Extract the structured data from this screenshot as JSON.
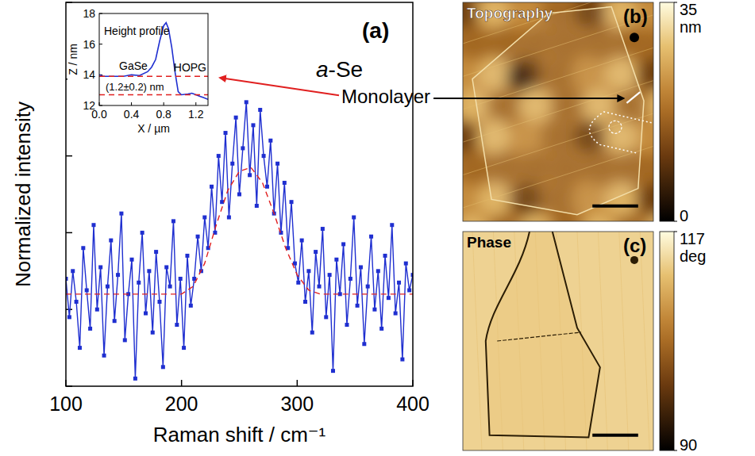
{
  "chart_data": [
    {
      "type": "line",
      "panel_label": "(a)",
      "x_label": "Raman shift / cm⁻¹",
      "y_label": "Normalized intensity",
      "xlim": [
        100,
        400
      ],
      "xticks": [
        100,
        200,
        300,
        400
      ],
      "ylim": [
        0,
        1
      ],
      "yticks": [
        0,
        0.2,
        0.4,
        0.6,
        0.8,
        1
      ],
      "tick_labels": "x",
      "grid": false,
      "annotations": [
        "a-Se",
        "Monolayer"
      ],
      "series": [
        {
          "color": "#1f2fd0",
          "marker": "square",
          "line_style": "solid",
          "x": [
            100,
            103,
            106,
            109,
            112,
            115,
            118,
            121,
            124,
            127,
            130,
            133,
            136,
            139,
            142,
            145,
            148,
            151,
            154,
            157,
            160,
            163,
            166,
            169,
            172,
            175,
            178,
            181,
            184,
            187,
            190,
            193,
            196,
            199,
            202,
            205,
            208,
            211,
            214,
            217,
            220,
            223,
            226,
            229,
            232,
            235,
            238,
            241,
            244,
            247,
            250,
            253,
            256,
            259,
            262,
            265,
            268,
            271,
            274,
            277,
            280,
            283,
            286,
            289,
            292,
            295,
            298,
            301,
            304,
            307,
            310,
            313,
            316,
            319,
            322,
            325,
            328,
            331,
            334,
            337,
            340,
            343,
            346,
            349,
            352,
            355,
            358,
            361,
            364,
            367,
            370,
            373,
            376,
            379,
            382,
            385,
            388,
            391,
            394,
            397,
            400
          ],
          "values": [
            0.28,
            0.18,
            0.3,
            0.22,
            0.1,
            0.36,
            0.25,
            0.15,
            0.42,
            0.2,
            0.31,
            0.08,
            0.26,
            0.38,
            0.17,
            0.29,
            0.45,
            0.12,
            0.24,
            0.33,
            0.02,
            0.27,
            0.4,
            0.19,
            0.3,
            0.14,
            0.35,
            0.22,
            0.05,
            0.31,
            0.26,
            0.43,
            0.16,
            0.28,
            0.1,
            0.34,
            0.21,
            0.28,
            0.39,
            0.3,
            0.44,
            0.36,
            0.52,
            0.4,
            0.6,
            0.48,
            0.66,
            0.44,
            0.58,
            0.7,
            0.5,
            0.62,
            0.74,
            0.55,
            0.68,
            0.47,
            0.72,
            0.6,
            0.52,
            0.64,
            0.45,
            0.58,
            0.4,
            0.53,
            0.36,
            0.48,
            0.32,
            0.27,
            0.38,
            0.22,
            0.3,
            0.14,
            0.35,
            0.26,
            0.41,
            0.18,
            0.29,
            0.04,
            0.33,
            0.24,
            0.37,
            0.16,
            0.28,
            0.44,
            0.21,
            0.31,
            0.11,
            0.26,
            0.39,
            0.2,
            0.3,
            0.15,
            0.34,
            0.23,
            0.42,
            0.19,
            0.27,
            0.07,
            0.32,
            0.25,
            0.29
          ]
        },
        {
          "color": "#e02020",
          "marker": "none",
          "line_style": "dashed",
          "x": [
            100,
            200,
            210,
            220,
            230,
            240,
            250,
            260,
            270,
            280,
            290,
            300,
            310,
            320,
            400
          ],
          "values": [
            0.24,
            0.24,
            0.26,
            0.32,
            0.42,
            0.51,
            0.56,
            0.57,
            0.53,
            0.45,
            0.36,
            0.29,
            0.25,
            0.24,
            0.24
          ]
        }
      ]
    },
    {
      "type": "line",
      "title": "Height profile",
      "x_label": "X / µm",
      "y_label": "Z / nm",
      "xlim": [
        0,
        1.35
      ],
      "xticks": [
        {
          "value": 0,
          "label": "0.0"
        },
        {
          "value": 0.4,
          "label": "0.4"
        },
        {
          "value": 0.8,
          "label": "0.8"
        },
        {
          "value": 1.2,
          "label": "1.2"
        }
      ],
      "ylim": [
        12,
        18
      ],
      "yticks": [
        12,
        14,
        16,
        18
      ],
      "grid": false,
      "annotations": [
        "GaSe",
        "(1.2±0.2) nm",
        "HOPG"
      ],
      "series": [
        {
          "color": "#1f2fd0",
          "marker": "none",
          "line_style": "solid",
          "x": [
            0,
            0.05,
            0.1,
            0.2,
            0.3,
            0.4,
            0.5,
            0.6,
            0.65,
            0.7,
            0.75,
            0.8,
            0.83,
            0.86,
            0.9,
            0.94,
            0.98,
            1.02,
            1.1,
            1.15,
            1.2,
            1.25,
            1.3,
            1.35
          ],
          "values": [
            14.0,
            13.9,
            13.9,
            13.9,
            13.9,
            14.0,
            13.95,
            14.2,
            14.5,
            15.0,
            16.2,
            17.2,
            17.4,
            17.0,
            15.8,
            14.2,
            12.9,
            12.7,
            12.75,
            12.8,
            12.7,
            12.6,
            12.5,
            12.4
          ]
        },
        {
          "color": "#e02020",
          "marker": "none",
          "line_style": "dashed",
          "x": [
            0,
            1.35
          ],
          "values": [
            13.9,
            13.9
          ]
        },
        {
          "color": "#e02020",
          "marker": "none",
          "line_style": "dashed",
          "x": [
            0,
            1.35
          ],
          "values": [
            12.7,
            12.7
          ]
        }
      ]
    },
    {
      "type": "image",
      "title": "Topography",
      "panel_label": "(b)",
      "colorbar": {
        "range": [
          0,
          35
        ],
        "ticks": [
          0,
          35
        ],
        "unit": "nm"
      }
    },
    {
      "type": "image",
      "title": "Phase",
      "panel_label": "(c)",
      "colorbar": {
        "range": [
          90,
          117
        ],
        "ticks": [
          90,
          117
        ],
        "unit": "deg"
      }
    }
  ]
}
